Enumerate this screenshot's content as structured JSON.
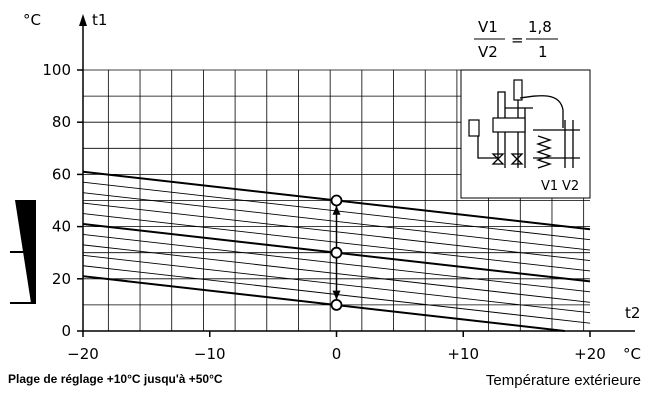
{
  "chart_data": {
    "type": "line",
    "x_unit": "°C",
    "y_unit": "°C",
    "xlabel": "t2",
    "ylabel": "t1",
    "xlim": [
      -20,
      20
    ],
    "ylim": [
      0,
      100
    ],
    "x_ticks": [
      "−20",
      "−10",
      "0",
      "+10",
      "+20"
    ],
    "y_ticks": [
      "0",
      "20",
      "40",
      "60",
      "80",
      "100"
    ],
    "grid": true,
    "ratio": {
      "numerator": "V1",
      "denominator": "V2",
      "value_num": "1,8",
      "value_den": "1"
    },
    "inset_labels": [
      "V1",
      "V2"
    ],
    "series": [
      {
        "values": [
          [
            -20,
            61
          ],
          [
            20,
            39
          ]
        ]
      },
      {
        "values": [
          [
            -20,
            41
          ],
          [
            20,
            19
          ]
        ]
      },
      {
        "values": [
          [
            -20,
            21
          ],
          [
            18,
            0
          ]
        ]
      },
      {
        "values": [
          [
            -20,
            57
          ],
          [
            20,
            35
          ]
        ]
      },
      {
        "values": [
          [
            -20,
            53
          ],
          [
            20,
            31
          ]
        ]
      },
      {
        "values": [
          [
            -20,
            49
          ],
          [
            20,
            27
          ]
        ]
      },
      {
        "values": [
          [
            -20,
            45
          ],
          [
            20,
            23
          ]
        ]
      },
      {
        "values": [
          [
            -20,
            37
          ],
          [
            20,
            15
          ]
        ]
      },
      {
        "values": [
          [
            -20,
            33
          ],
          [
            20,
            11
          ]
        ]
      },
      {
        "values": [
          [
            -20,
            29
          ],
          [
            20,
            7
          ]
        ]
      },
      {
        "values": [
          [
            -20,
            25
          ],
          [
            20,
            3
          ]
        ]
      }
    ],
    "markers": [
      [
        0,
        50
      ],
      [
        0,
        30
      ],
      [
        0,
        10
      ]
    ],
    "range_arrow": {
      "x": 0,
      "from": 48,
      "to": 12
    }
  },
  "footer": {
    "left": "Plage de réglage +10°C jusqu'à +50°C",
    "right": "Température extérieure"
  }
}
